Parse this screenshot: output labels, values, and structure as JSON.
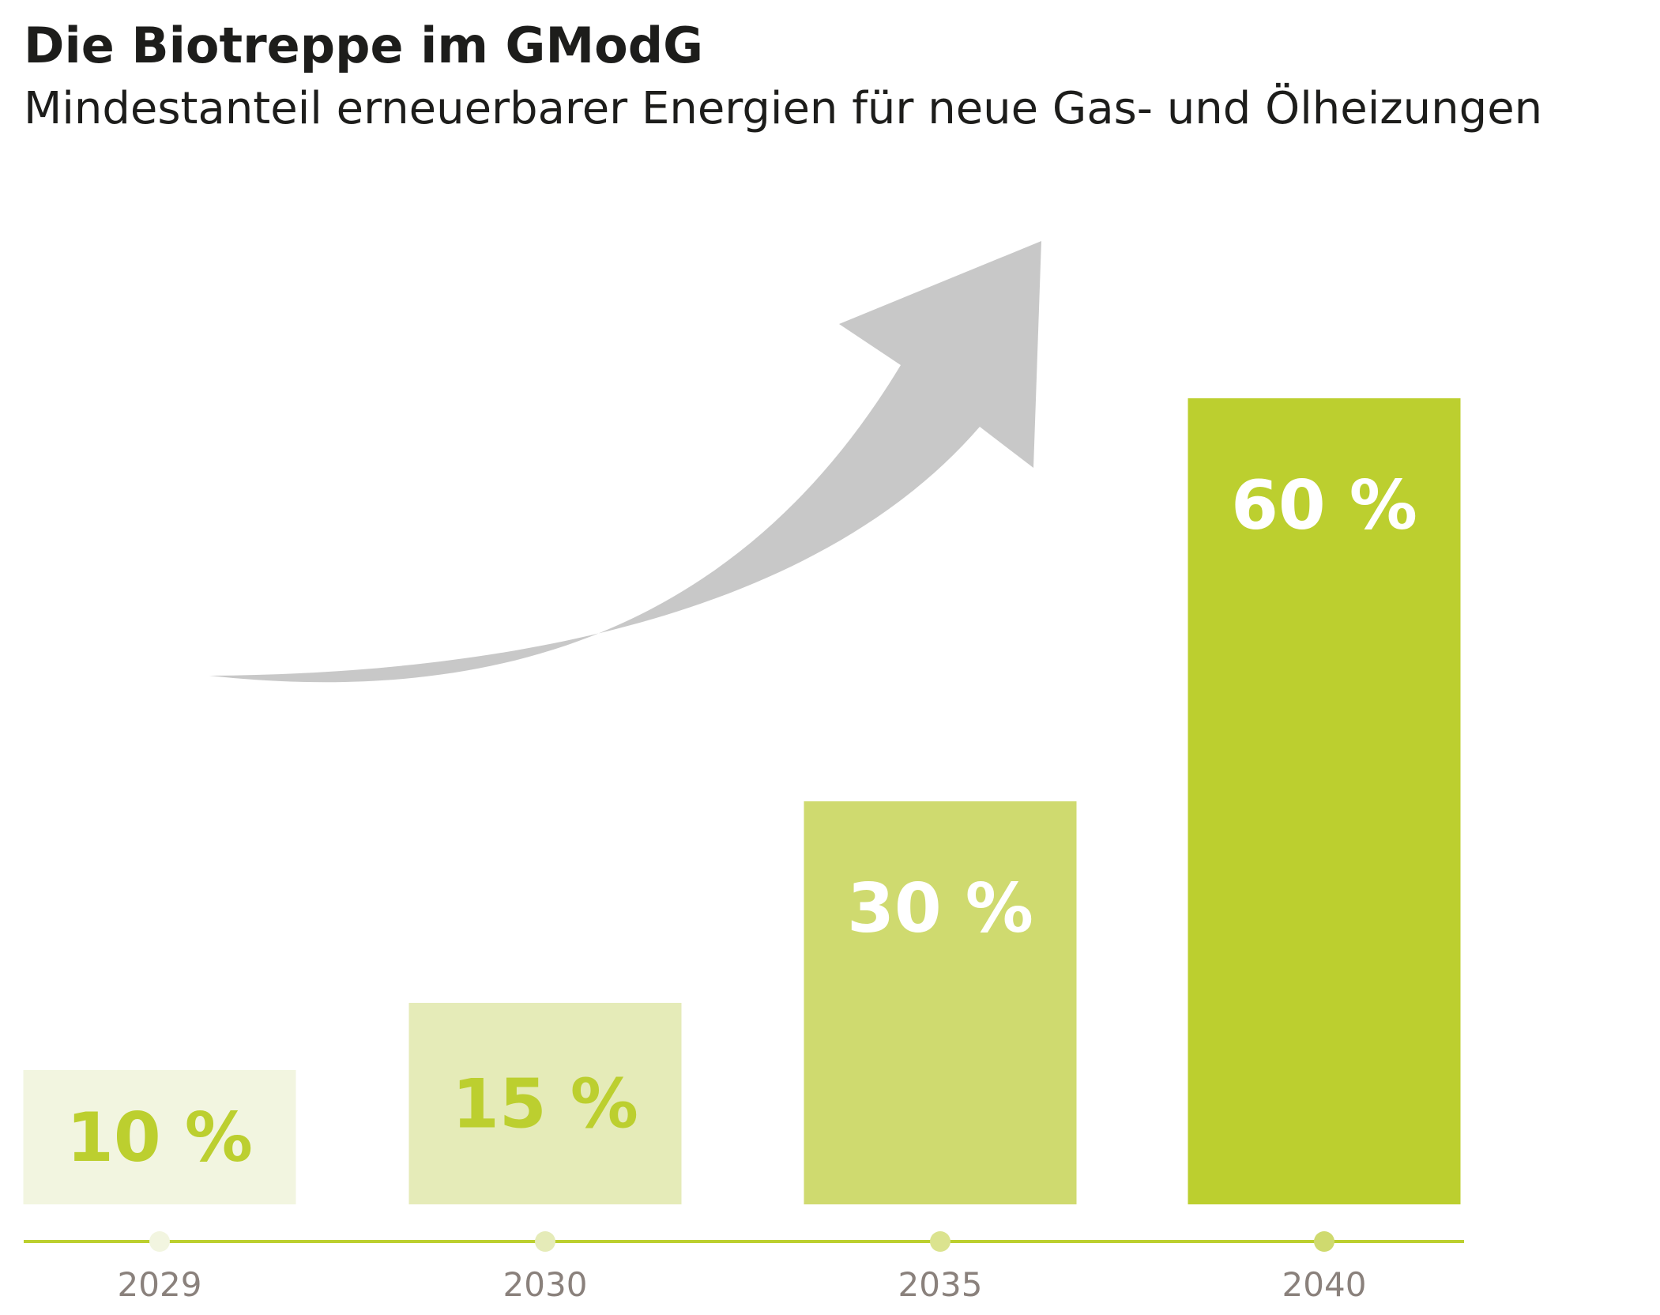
{
  "colors": {
    "axis": "#bccf2f",
    "arrow": "#c8c8c8",
    "text": "#1d1d1b",
    "tick_text": "#8a817c"
  },
  "chart_data": {
    "type": "bar",
    "title": "Die Biotreppe im GModG",
    "subtitle": "Mindestanteil erneuerbarer Energien für neue Gas- und Ölheizungen",
    "xlabel": "",
    "ylabel": "",
    "ylim": [
      0,
      60
    ],
    "grid": false,
    "legend": "none",
    "unit": "%",
    "categories": [
      "2029",
      "2030",
      "2035",
      "2040"
    ],
    "values": [
      10,
      15,
      30,
      60
    ],
    "data_labels": [
      "10 %",
      "15 %",
      "30 %",
      "60 %"
    ],
    "bar_colors": [
      "#f2f5e0",
      "#e5ebb8",
      "#cfda6f",
      "#bccf2f"
    ],
    "label_colors": [
      "#bccf2f",
      "#bccf2f",
      "#ffffff",
      "#ffffff"
    ],
    "dot_colors": [
      "#f2f5e0",
      "#e5ebb8",
      "#dbe38f",
      "#cfda6f"
    ]
  }
}
